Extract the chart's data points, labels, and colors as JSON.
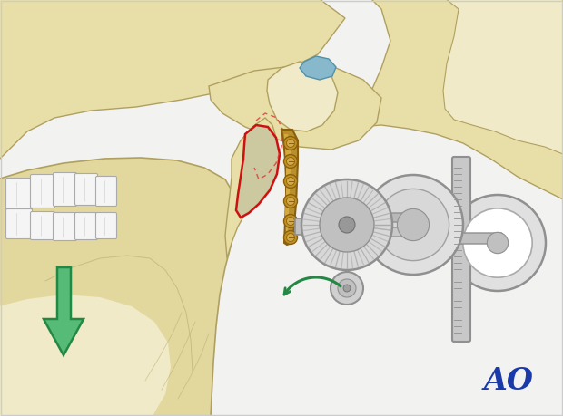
{
  "bg_color": "#f0f0ee",
  "bone_color": "#e8dfa8",
  "bone_color2": "#ddd49a",
  "bone_light": "#f0eac8",
  "bone_outline": "#b0a060",
  "bone_outline2": "#c8b870",
  "mandible_color": "#e2d89e",
  "tooth_color": "#f5f5f5",
  "tooth_shadow": "#ddddd8",
  "tooth_outline": "#aaaaaa",
  "plate_color": "#b8902a",
  "plate_dark": "#8a6010",
  "plate_light": "#d4aa40",
  "screw_color": "#c09020",
  "fracture_fill": "#c8c090",
  "fracture_red": "#cc1111",
  "fracture_dashed": "#dd3333",
  "implant_light": "#e0e0e0",
  "implant_mid": "#c0c0c0",
  "implant_dark": "#909090",
  "implant_darker": "#707070",
  "disc_color": "#88b8cc",
  "disc_outline": "#5090aa",
  "green_fill": "#55bb77",
  "green_outline": "#228844",
  "green_curve": "#228844",
  "ao_color": "#1a3aaa",
  "ao_text": "AO",
  "figsize": [
    6.2,
    4.59
  ],
  "dpi": 100
}
